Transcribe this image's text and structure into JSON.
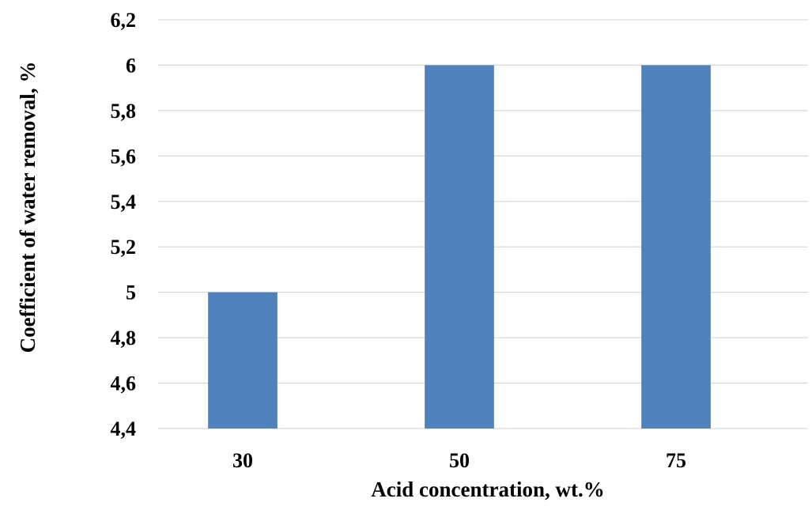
{
  "chart_data": {
    "type": "bar",
    "title": "",
    "categories": [
      "30",
      "50",
      "75"
    ],
    "values": [
      5,
      6,
      6
    ],
    "xlabel": "Acid concentration, wt.%",
    "ylabel": "Coefficient of water removal, %",
    "ylim": [
      4.4,
      6.2
    ],
    "yticks": [
      4.4,
      4.6,
      4.8,
      5.0,
      5.2,
      5.4,
      5.6,
      5.8,
      6.0,
      6.2
    ],
    "ytick_labels": [
      "4,4",
      "4,6",
      "4,8",
      "5",
      "5,2",
      "5,4",
      "5,6",
      "5,8",
      "6",
      "6,2"
    ],
    "grid": true,
    "legend": "none",
    "bar_color": "#4f81bd",
    "grid_color": "#d9d9d9"
  }
}
